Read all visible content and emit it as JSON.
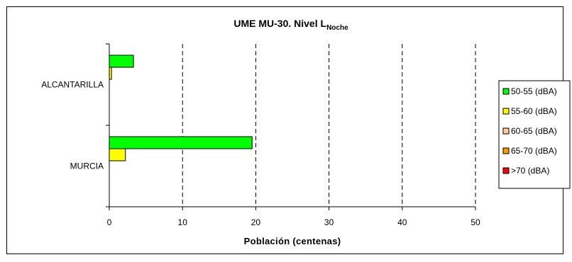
{
  "chart_data": {
    "type": "bar",
    "orientation": "horizontal",
    "title": "UME MU-30. Nivel L",
    "title_subscript": "Noche",
    "xlabel": "Población (centenas)",
    "categories": [
      "ALCANTARILLA",
      "MURCIA"
    ],
    "series": [
      {
        "name": "50-55 (dBA)",
        "color": "#00ff00",
        "values": [
          3.3,
          19.5
        ]
      },
      {
        "name": "55-60 (dBA)",
        "color": "#ffff00",
        "values": [
          0.3,
          2.2
        ]
      },
      {
        "name": "60-65 (dBA)",
        "color": "#ffcc99",
        "values": [
          0,
          0
        ]
      },
      {
        "name": "65-70 (dBA)",
        "color": "#ff9900",
        "values": [
          0,
          0
        ]
      },
      {
        "name": ">70 (dBA)",
        "color": "#ff0000",
        "values": [
          0,
          0
        ]
      }
    ],
    "xlim": [
      0,
      50
    ],
    "xticks": [
      0,
      10,
      20,
      30,
      40,
      50
    ],
    "xtick_labels": [
      "0",
      "10",
      "20",
      "30",
      "40",
      "50"
    ],
    "grid": "vertical dashed",
    "legend_position": "right"
  }
}
